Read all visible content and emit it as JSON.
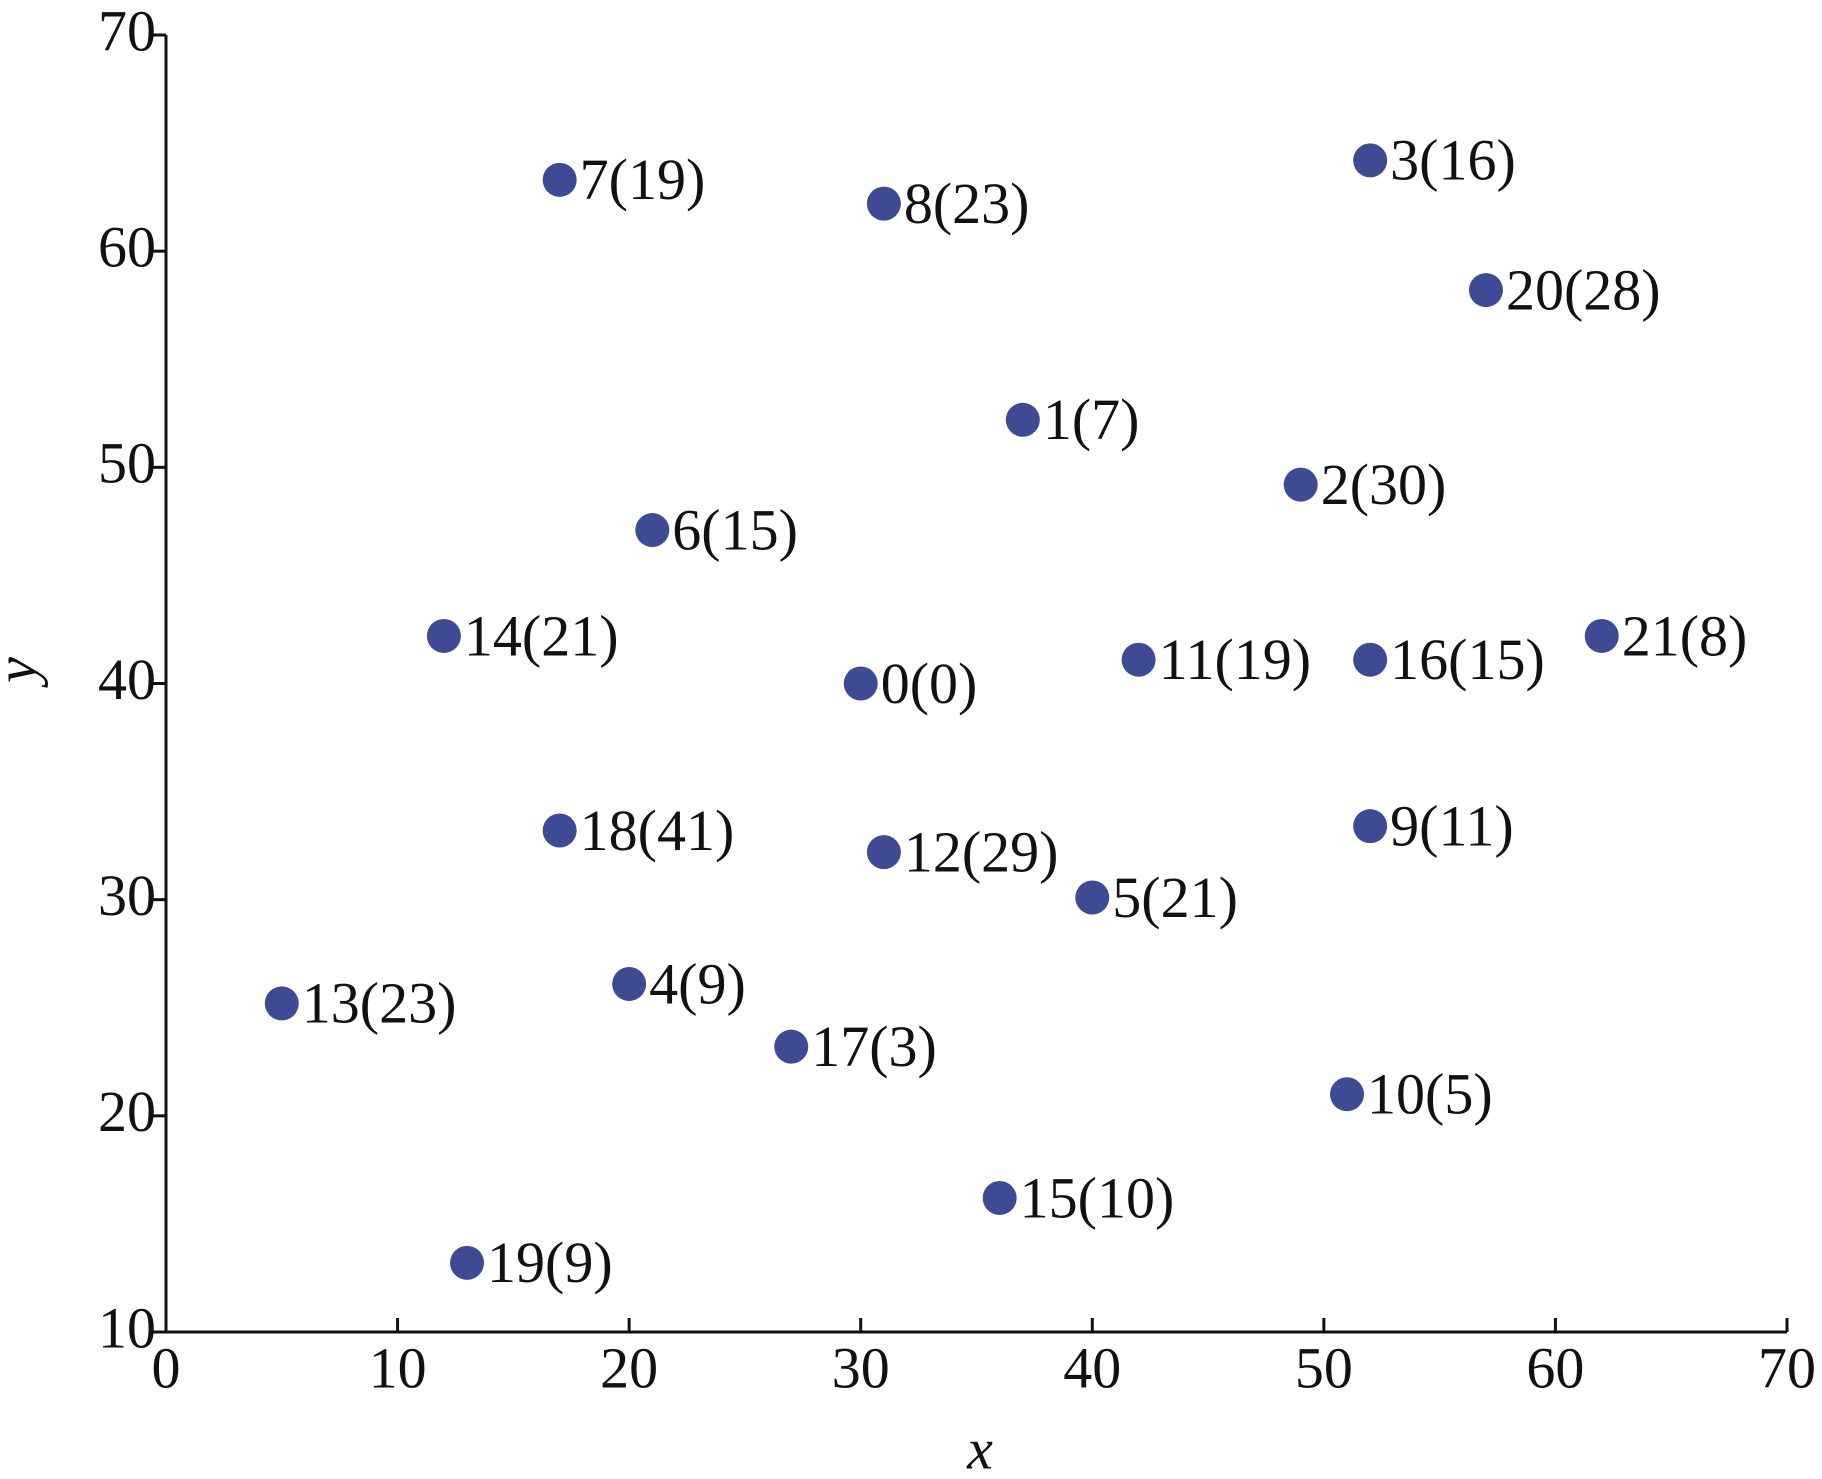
{
  "chart_data": {
    "type": "scatter",
    "x_label": "x",
    "y_label": "y",
    "x": [
      30,
      37,
      49,
      52,
      20,
      40,
      21,
      17,
      31,
      52,
      51,
      42,
      31,
      5,
      12,
      36,
      52,
      27,
      17,
      13,
      57,
      62
    ],
    "values": [
      40,
      52.2,
      49.2,
      64.2,
      26.1,
      30.1,
      47.1,
      63.3,
      62.2,
      33.4,
      21,
      41.1,
      32.2,
      25.2,
      42.2,
      16.2,
      41.1,
      23.2,
      33.2,
      13.2,
      58.2,
      42.2
    ],
    "labels": [
      "0(0)",
      "1(7)",
      "2(30)",
      "3(16)",
      "4(9)",
      "5(21)",
      "6(15)",
      "7(19)",
      "8(23)",
      "9(11)",
      "10(5)",
      "11(19)",
      "12(29)",
      "13(23)",
      "14(21)",
      "15(10)",
      "16(15)",
      "17(3)",
      "18(41)",
      "19(9)",
      "20(28)",
      "21(8)"
    ],
    "color": "#3f4a94",
    "xlim": [
      0,
      70
    ],
    "ylim": [
      10,
      70
    ],
    "xticks": [
      0,
      10,
      20,
      30,
      40,
      50,
      60,
      70
    ],
    "yticks": [
      10,
      20,
      30,
      40,
      50,
      60,
      70
    ]
  }
}
